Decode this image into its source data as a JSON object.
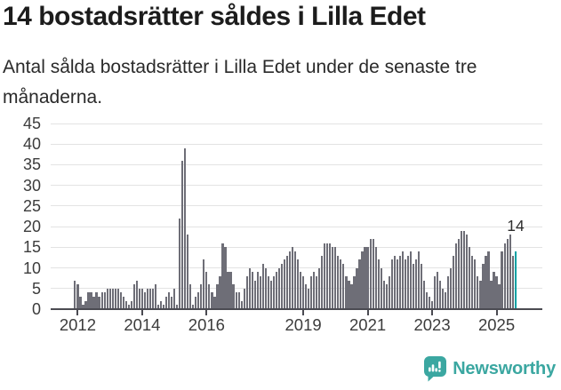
{
  "header": {
    "title": "14 bostadsrätter såldes i Lilla Edet",
    "subtitle": "Antal sålda bostadsrätter i Lilla Edet under de senaste tre månaderna."
  },
  "chart_data": {
    "type": "bar",
    "title": "14 bostadsrätter såldes i Lilla Edet",
    "subtitle": "Antal sålda bostadsrätter i Lilla Edet under de senaste tre månaderna.",
    "frequency": "monthly",
    "x_start": "2011-12",
    "x_end": "2025-08",
    "ylim": [
      0,
      45
    ],
    "yticks": [
      0,
      5,
      10,
      15,
      20,
      25,
      30,
      35,
      40,
      45
    ],
    "grid": true,
    "legend": "none",
    "bar_color": "#6e6e77",
    "highlight_color": "#00a1a4",
    "highlight_last": true,
    "annotation": {
      "text": "14",
      "value": 14,
      "target": "last-bar"
    },
    "xticks": [
      {
        "label": "2012",
        "index": 1
      },
      {
        "label": "2014",
        "index": 25
      },
      {
        "label": "2016",
        "index": 49
      },
      {
        "label": "2019",
        "index": 85
      },
      {
        "label": "2021",
        "index": 109
      },
      {
        "label": "2023",
        "index": 133
      },
      {
        "label": "2025",
        "index": 157
      }
    ],
    "values": [
      7,
      6,
      3,
      1,
      2,
      4,
      4,
      3,
      4,
      3,
      4,
      4,
      5,
      5,
      5,
      5,
      5,
      4,
      3,
      2,
      1,
      2,
      6,
      7,
      5,
      5,
      4,
      5,
      5,
      5,
      6,
      1,
      2,
      1,
      3,
      4,
      3,
      5,
      1,
      22,
      36,
      39,
      18,
      6,
      1,
      3,
      4,
      6,
      12,
      9,
      6,
      4,
      3,
      6,
      8,
      16,
      15,
      9,
      9,
      6,
      4,
      4,
      2,
      5,
      8,
      10,
      9,
      7,
      9,
      8,
      11,
      10,
      8,
      7,
      8,
      9,
      10,
      11,
      12,
      13,
      14,
      15,
      14,
      12,
      9,
      8,
      6,
      5,
      8,
      9,
      8,
      10,
      13,
      16,
      16,
      16,
      15,
      15,
      13,
      12,
      11,
      8,
      7,
      6,
      8,
      10,
      12,
      14,
      15,
      15,
      17,
      17,
      15,
      12,
      10,
      7,
      6,
      8,
      12,
      13,
      12,
      13,
      14,
      12,
      13,
      14,
      11,
      12,
      14,
      11,
      7,
      4,
      3,
      2,
      8,
      9,
      7,
      5,
      4,
      8,
      10,
      13,
      16,
      17,
      19,
      19,
      18,
      15,
      13,
      12,
      8,
      7,
      11,
      13,
      14,
      7,
      9,
      8,
      6,
      14,
      16,
      17,
      18,
      13,
      14
    ]
  },
  "footer": {
    "brand": "Newsworthy",
    "logo_icon": "bar-chart-speech-bubble-icon",
    "brand_color": "#3ba7a1"
  }
}
